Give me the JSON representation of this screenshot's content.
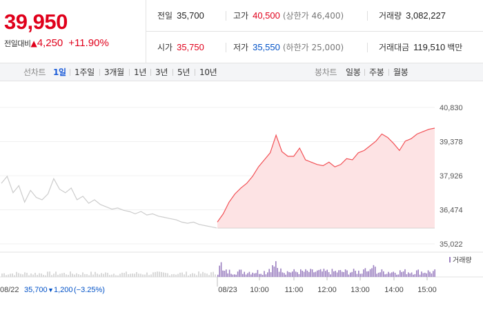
{
  "summary": {
    "price": "39,950",
    "change_label": "전일대비",
    "change_arrow": "▲",
    "change_value": "4,250",
    "change_pct": "+11.90%"
  },
  "stats": {
    "prev_close": {
      "label": "전일",
      "value": "35,700"
    },
    "high": {
      "label": "고가",
      "value": "40,500",
      "note": "(상한가 46,400)"
    },
    "volume": {
      "label": "거래량",
      "value": "3,082,227"
    },
    "open": {
      "label": "시가",
      "value": "35,750"
    },
    "low": {
      "label": "저가",
      "value": "35,550",
      "note": "(하한가 25,000)"
    },
    "amount": {
      "label": "거래대금",
      "value": "119,510",
      "unit": "백만"
    }
  },
  "toolbar": {
    "line_chart_label": "선차트",
    "periods": [
      "1일",
      "1주일",
      "3개월",
      "1년",
      "3년",
      "5년",
      "10년"
    ],
    "active_period": "1일",
    "candle_label": "봉차트",
    "candles": [
      "일봉",
      "주봉",
      "월봉"
    ]
  },
  "colors": {
    "up": "#e0001b",
    "down": "#0051c7",
    "active_tab": "#1a5bd8",
    "today_line": "#f25055",
    "today_fill": "#fde3e4",
    "prev_line": "#cccccc",
    "volume_bar": "#9b7fc0"
  },
  "chart_data": {
    "type": "line",
    "y_ticks": [
      "40,830",
      "39,378",
      "37,926",
      "36,474",
      "35,022"
    ],
    "ylim": [
      35022,
      40830
    ],
    "baseline": 35700,
    "x_ticks": [
      "08/23",
      "10:00",
      "11:00",
      "12:00",
      "13:00",
      "14:00",
      "15:00"
    ],
    "volume_legend": "거래량",
    "prev_day_label": {
      "date": "08/22",
      "close": "35,700",
      "arrow": "▼",
      "change": "1,200",
      "pct": "(−3.25%)"
    },
    "series": [
      {
        "values": [
          37600,
          37900,
          37200,
          37500,
          36800,
          37300,
          37000,
          36900,
          37150,
          37800,
          37350,
          37200,
          37400,
          36900,
          37050,
          36750,
          36900,
          36700,
          36600,
          36500,
          36550,
          36450,
          36400,
          36300,
          36400,
          36250,
          36300,
          36200,
          36150,
          36100,
          36050,
          35950,
          35900,
          35950,
          35850,
          35800,
          35750,
          35700
        ]
      },
      {
        "values": [
          35950,
          36300,
          36800,
          37150,
          37400,
          37600,
          37900,
          38300,
          38600,
          38900,
          39650,
          38950,
          38750,
          38750,
          39100,
          38600,
          38500,
          38400,
          38350,
          38500,
          38300,
          38400,
          38650,
          38600,
          38900,
          39000,
          39200,
          39400,
          39700,
          39550,
          39300,
          39000,
          39400,
          39500,
          39700,
          39800,
          39900,
          39950
        ]
      }
    ]
  }
}
